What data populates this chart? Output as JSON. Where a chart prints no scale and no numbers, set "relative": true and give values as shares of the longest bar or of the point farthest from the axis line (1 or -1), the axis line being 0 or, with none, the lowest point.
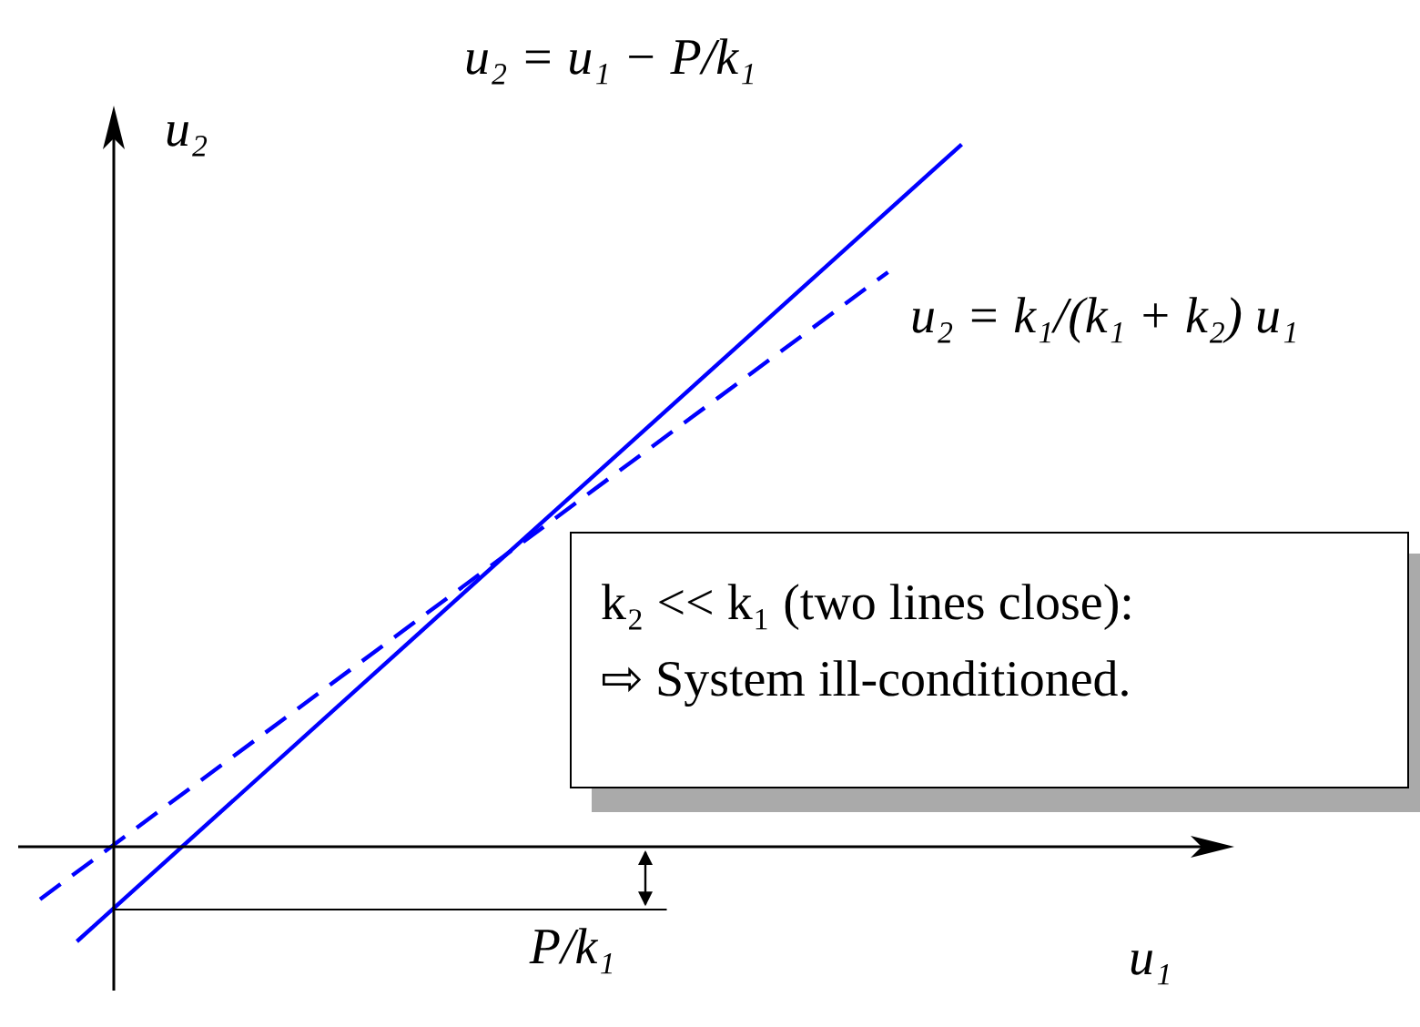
{
  "chart_data": {
    "type": "line",
    "relative": true,
    "xlabel": "u₁",
    "ylabel": "u₂",
    "marker": "none",
    "grid": false,
    "categories": [
      null,
      null,
      null,
      null,
      null,
      null,
      null,
      null,
      null,
      null,
      null,
      null,
      null,
      null,
      null,
      null,
      null,
      null,
      null,
      null,
      null,
      null,
      null,
      null,
      null,
      null,
      null,
      null,
      null,
      null,
      null,
      null,
      null
    ],
    "series": [
      {
        "color": "#0000ff",
        "line_style": "solid",
        "values": [
          null,
          -0.135,
          null,
          null,
          null,
          null,
          null,
          null,
          null,
          null,
          null,
          null,
          null,
          null,
          null,
          null,
          null,
          null,
          null,
          null,
          null,
          null,
          null,
          null,
          null,
          1,
          null,
          null,
          null,
          null,
          null,
          null,
          null
        ]
      },
      {
        "color": "#0000ff",
        "line_style": "dashed",
        "values": [
          -0.075,
          null,
          null,
          null,
          null,
          null,
          null,
          null,
          null,
          null,
          null,
          null,
          null,
          null,
          null,
          null,
          null,
          null,
          null,
          null,
          null,
          null,
          null,
          0.818,
          null,
          null,
          null,
          null,
          null,
          null,
          null,
          null,
          null
        ]
      }
    ],
    "ref_lines": [
      {
        "axis": "y",
        "value": -0.09,
        "label": "P/k₁"
      }
    ],
    "annotations": [
      "u₂ = u₁ − P/k₁",
      "u₂ = k₁/(k₁ + k₂) u₁",
      "k₂ << k₁ (two lines close):\n⇨ System ill-conditioned."
    ]
  }
}
